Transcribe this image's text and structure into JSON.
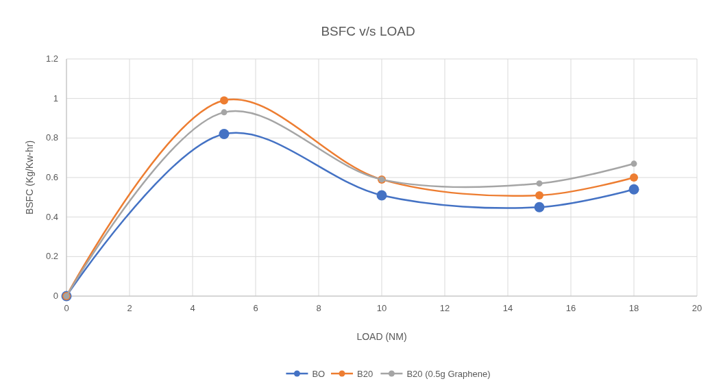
{
  "chart_data": {
    "type": "line",
    "title": "BSFC v/s LOAD",
    "xlabel": "LOAD (NM)",
    "ylabel": "BSFC (Kg/Kw-hr)",
    "x": [
      0,
      5,
      10,
      15,
      18
    ],
    "series": [
      {
        "name": "BO",
        "color": "#4472c4",
        "values": [
          0,
          0.82,
          0.51,
          0.45,
          0.54
        ]
      },
      {
        "name": "B20",
        "color": "#ed7d31",
        "values": [
          0,
          0.99,
          0.59,
          0.51,
          0.6
        ]
      },
      {
        "name": "B20 (0.5g Graphene)",
        "color": "#a5a5a5",
        "values": [
          0,
          0.93,
          0.59,
          0.57,
          0.67
        ]
      }
    ],
    "xlim": [
      0,
      20
    ],
    "xticks": [
      0,
      2,
      4,
      6,
      8,
      10,
      12,
      14,
      16,
      18,
      20
    ],
    "ylim": [
      0,
      1.2
    ],
    "yticks": [
      0,
      0.2,
      0.4,
      0.6,
      0.8,
      1,
      1.2
    ],
    "grid": true,
    "legend": "bottom",
    "marker": "circle",
    "line_style": "solid"
  }
}
